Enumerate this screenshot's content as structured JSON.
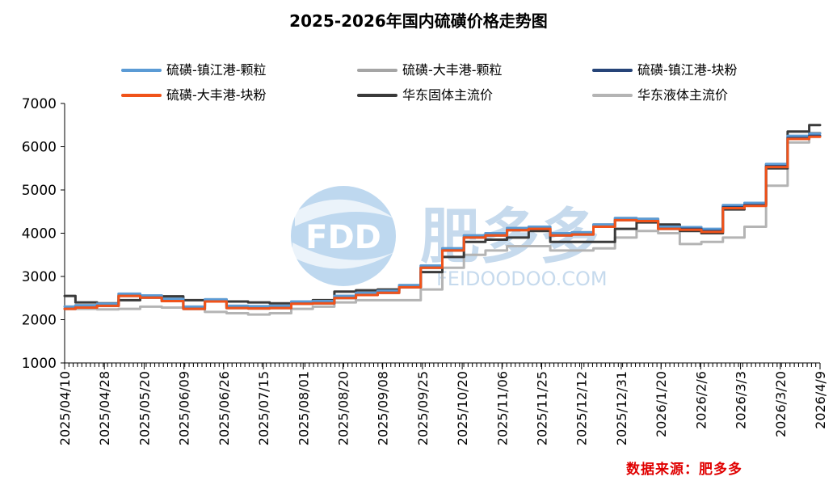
{
  "chart_data": {
    "type": "line",
    "title": "2025-2026年国内硫磺价格走势图",
    "xlabel": "",
    "ylabel": "",
    "ylim": [
      1000,
      7000
    ],
    "yticks": [
      1000,
      2000,
      3000,
      4000,
      5000,
      6000,
      7000
    ],
    "xticks": [
      "2025/04/10",
      "2025/04/28",
      "2025/05/20",
      "2025/06/09",
      "2025/06/26",
      "2025/07/15",
      "2025/08/01",
      "2025/08/20",
      "2025/09/08",
      "2025/09/25",
      "2025/10/20",
      "2025/11/06",
      "2025/11/25",
      "2025/12/12",
      "2025/12/31",
      "2026/1/20",
      "2026/2/6",
      "2026/3/3",
      "2026/3/20",
      "2026/4/9"
    ],
    "grid": false,
    "legend_position": "top",
    "source": "数据来源：肥多多",
    "watermark": {
      "logo_text": "FDD",
      "brand": "肥多多",
      "url": "FEIDOODOO.COM"
    },
    "series": [
      {
        "name": "硫磺-镇江港-颗粒",
        "color": "#5b9bd5",
        "width": 3,
        "values": [
          2300,
          2330,
          2370,
          2600,
          2560,
          2480,
          2300,
          2470,
          2320,
          2310,
          2320,
          2420,
          2430,
          2550,
          2620,
          2670,
          2800,
          3250,
          3650,
          3950,
          4000,
          4120,
          4150,
          4000,
          4020,
          4200,
          4350,
          4330,
          4150,
          4140,
          4100,
          4650,
          4700,
          5600,
          6250,
          6300
        ]
      },
      {
        "name": "硫磺-大丰港-颗粒",
        "color": "#a5a5a5",
        "width": 3,
        "values": [
          2300,
          2330,
          2370,
          2600,
          2560,
          2480,
          2300,
          2470,
          2320,
          2310,
          2320,
          2420,
          2430,
          2550,
          2620,
          2670,
          2800,
          3250,
          3650,
          3950,
          4000,
          4120,
          4150,
          4000,
          4020,
          4200,
          4350,
          4330,
          4150,
          4130,
          4080,
          4640,
          4690,
          5590,
          6240,
          6320
        ]
      },
      {
        "name": "硫磺-镇江港-块粉",
        "color": "#264478",
        "width": 3,
        "values": [
          2250,
          2280,
          2320,
          2550,
          2510,
          2430,
          2250,
          2420,
          2270,
          2260,
          2270,
          2370,
          2380,
          2500,
          2570,
          2620,
          2750,
          3200,
          3600,
          3900,
          3950,
          4070,
          4100,
          3950,
          3970,
          4150,
          4300,
          4280,
          4100,
          4100,
          4050,
          4600,
          4650,
          5550,
          6200,
          6250
        ]
      },
      {
        "name": "硫磺-大丰港-块粉",
        "color": "#f0531a",
        "width": 3,
        "values": [
          2250,
          2280,
          2320,
          2550,
          2510,
          2430,
          2250,
          2420,
          2270,
          2260,
          2270,
          2370,
          2380,
          2500,
          2570,
          2620,
          2750,
          3200,
          3600,
          3900,
          3950,
          4070,
          4100,
          3950,
          3970,
          4150,
          4300,
          4280,
          4100,
          4080,
          4030,
          4580,
          4630,
          5530,
          6180,
          6230
        ]
      },
      {
        "name": "华东固体主流价",
        "color": "#3a3a3a",
        "width": 3,
        "values": [
          2550,
          2400,
          2380,
          2450,
          2530,
          2540,
          2450,
          2450,
          2420,
          2400,
          2380,
          2380,
          2450,
          2650,
          2680,
          2700,
          2750,
          3100,
          3450,
          3800,
          3850,
          3900,
          4050,
          3800,
          3800,
          3800,
          4100,
          4250,
          4200,
          4050,
          4000,
          4550,
          4650,
          5500,
          6350,
          6500
        ]
      },
      {
        "name": "华东液体主流价",
        "color": "#b4b4b4",
        "width": 3,
        "values": [
          2300,
          2250,
          2240,
          2250,
          2300,
          2280,
          2250,
          2180,
          2150,
          2120,
          2150,
          2250,
          2300,
          2400,
          2450,
          2450,
          2450,
          2700,
          3200,
          3500,
          3600,
          3700,
          3700,
          3600,
          3600,
          3650,
          3900,
          4050,
          4000,
          3750,
          3800,
          3900,
          4150,
          5100,
          6100,
          6300
        ]
      }
    ]
  }
}
